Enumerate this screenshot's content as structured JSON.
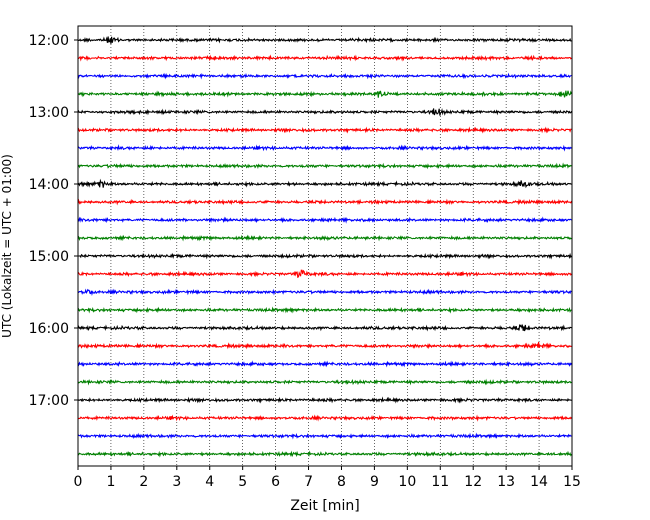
{
  "chart_data": {
    "type": "line",
    "title": "",
    "xlabel": "Zeit  [min]",
    "ylabel": "UTC (Lokalzeit = UTC + 01:00)",
    "xlim": [
      0,
      15
    ],
    "x_ticks": [
      "0",
      "1",
      "2",
      "3",
      "4",
      "5",
      "6",
      "7",
      "8",
      "9",
      "10",
      "11",
      "12",
      "13",
      "14",
      "15"
    ],
    "y_ticks": [
      "12:00",
      "13:00",
      "14:00",
      "15:00",
      "16:00",
      "17:00"
    ],
    "grid": "vertical dotted lines at each minute",
    "trace_interval_min": 15,
    "trace_start": "12:00",
    "trace_count": 24,
    "trace_colors": [
      "#000000",
      "#ff0000",
      "#0000ff",
      "#008000"
    ],
    "events": [
      {
        "trace": 0,
        "minute": 1.0,
        "amplitude": 0.6
      },
      {
        "trace": 3,
        "minute": 9.2,
        "amplitude": 0.7
      },
      {
        "trace": 3,
        "minute": 14.8,
        "amplitude": 0.7
      },
      {
        "trace": 4,
        "minute": 10.9,
        "amplitude": 0.6
      },
      {
        "trace": 8,
        "minute": 0.7,
        "amplitude": 0.6
      },
      {
        "trace": 8,
        "minute": 13.5,
        "amplitude": 0.6
      },
      {
        "trace": 13,
        "minute": 6.8,
        "amplitude": 1.0
      },
      {
        "trace": 14,
        "minute": 0.3,
        "amplitude": 0.6
      },
      {
        "trace": 16,
        "minute": 13.5,
        "amplitude": 0.6
      },
      {
        "trace": 17,
        "minute": 14.0,
        "amplitude": 0.5
      }
    ]
  }
}
